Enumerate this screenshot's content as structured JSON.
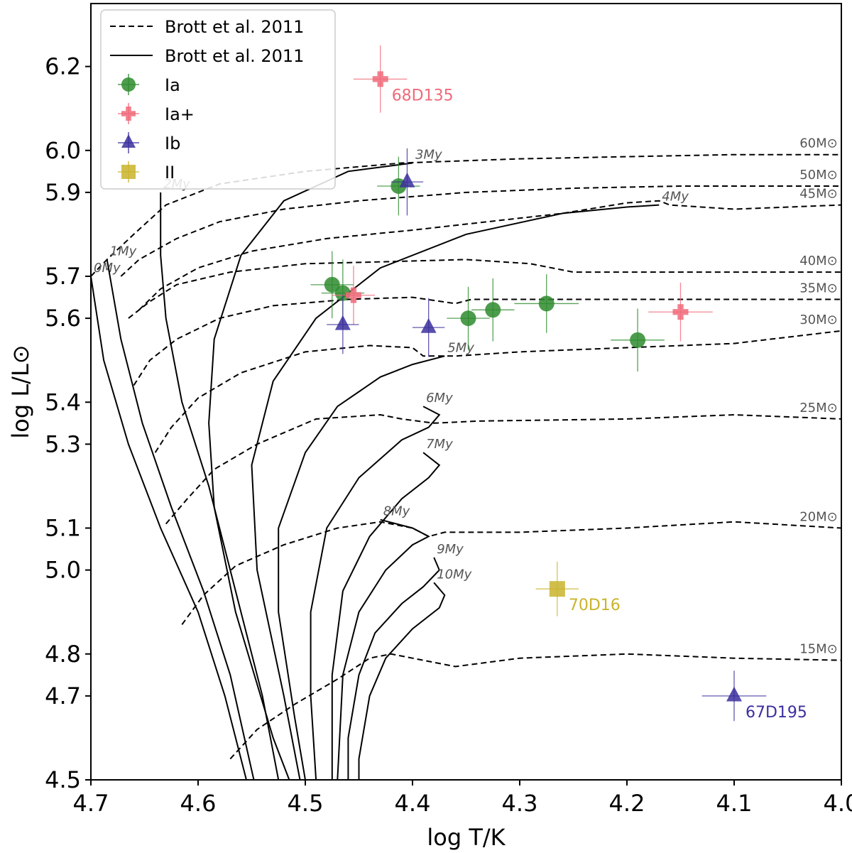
{
  "chart_data": {
    "type": "scatter",
    "title": "",
    "xlabel": "log T/K",
    "ylabel": "log L/L⊙",
    "xlim": [
      4.7,
      4.0
    ],
    "ylim": [
      4.5,
      6.35
    ],
    "x_ticks": [
      "4.7",
      "4.6",
      "4.5",
      "4.4",
      "4.3",
      "4.2",
      "4.1",
      "4.0"
    ],
    "x_tick_values": [
      4.7,
      4.6,
      4.5,
      4.4,
      4.3,
      4.2,
      4.1,
      4.0
    ],
    "y_ticks": [
      "4.5",
      "4.7",
      "4.8",
      "5.0",
      "5.1",
      "5.3",
      "5.4",
      "5.6",
      "5.7",
      "5.9",
      "6.0",
      "6.2"
    ],
    "y_tick_values": [
      4.5,
      4.7,
      4.8,
      5.0,
      5.1,
      5.3,
      5.4,
      5.6,
      5.7,
      5.9,
      6.0,
      6.2
    ],
    "legend": {
      "placement": "top-left",
      "entries": [
        {
          "label": "Brott et al. 2011",
          "style": "dashed"
        },
        {
          "label": "Brott et al. 2011",
          "style": "solid"
        },
        {
          "label": "Ia",
          "marker": "circle",
          "color": "#2e8b2e"
        },
        {
          "label": "Ia+",
          "marker": "plus",
          "color": "#f06a7a"
        },
        {
          "label": "Ib",
          "marker": "triangle",
          "color": "#3b2f9e"
        },
        {
          "label": "II",
          "marker": "square",
          "color": "#c9b42c"
        }
      ]
    },
    "tracks": [
      {
        "mass_label": "60M⊙",
        "points": [
          [
            4.7,
            5.7
          ],
          [
            4.685,
            5.74
          ],
          [
            4.66,
            5.8
          ],
          [
            4.63,
            5.87
          ],
          [
            4.58,
            5.92
          ],
          [
            4.5,
            5.95
          ],
          [
            4.41,
            5.97
          ],
          [
            4.3,
            5.98
          ],
          [
            4.2,
            5.985
          ],
          [
            4.1,
            5.99
          ],
          [
            4.0,
            5.99
          ]
        ]
      },
      {
        "mass_label": "50M⊙",
        "points": [
          [
            4.672,
            5.7
          ],
          [
            4.655,
            5.74
          ],
          [
            4.62,
            5.79
          ],
          [
            4.58,
            5.83
          ],
          [
            4.52,
            5.86
          ],
          [
            4.45,
            5.88
          ],
          [
            4.35,
            5.9
          ],
          [
            4.25,
            5.91
          ],
          [
            4.15,
            5.915
          ],
          [
            4.0,
            5.915
          ]
        ]
      },
      {
        "mass_label": "45M⊙",
        "points": [
          [
            4.655,
            5.62
          ],
          [
            4.635,
            5.67
          ],
          [
            4.6,
            5.72
          ],
          [
            4.55,
            5.76
          ],
          [
            4.48,
            5.79
          ],
          [
            4.4,
            5.81
          ],
          [
            4.33,
            5.83
          ],
          [
            4.26,
            5.85
          ],
          [
            4.2,
            5.875
          ],
          [
            4.17,
            5.88
          ],
          [
            4.16,
            5.87
          ],
          [
            4.1,
            5.86
          ],
          [
            4.0,
            5.87
          ]
        ]
      },
      {
        "mass_label": "40M⊙",
        "points": [
          [
            4.665,
            5.6
          ],
          [
            4.645,
            5.64
          ],
          [
            4.62,
            5.68
          ],
          [
            4.57,
            5.71
          ],
          [
            4.5,
            5.73
          ],
          [
            4.42,
            5.735
          ],
          [
            4.35,
            5.74
          ],
          [
            4.29,
            5.73
          ],
          [
            4.25,
            5.71
          ],
          [
            4.15,
            5.71
          ],
          [
            4.0,
            5.71
          ]
        ]
      },
      {
        "mass_label": "35M⊙",
        "points": [
          [
            4.66,
            5.44
          ],
          [
            4.645,
            5.5
          ],
          [
            4.62,
            5.55
          ],
          [
            4.58,
            5.6
          ],
          [
            4.53,
            5.63
          ],
          [
            4.46,
            5.645
          ],
          [
            4.4,
            5.65
          ],
          [
            4.36,
            5.635
          ],
          [
            4.345,
            5.645
          ],
          [
            4.3,
            5.645
          ],
          [
            4.2,
            5.645
          ],
          [
            4.1,
            5.645
          ],
          [
            4.0,
            5.645
          ]
        ]
      },
      {
        "mass_label": "30M⊙",
        "points": [
          [
            4.64,
            5.28
          ],
          [
            4.625,
            5.34
          ],
          [
            4.6,
            5.41
          ],
          [
            4.56,
            5.47
          ],
          [
            4.5,
            5.52
          ],
          [
            4.44,
            5.535
          ],
          [
            4.4,
            5.53
          ],
          [
            4.39,
            5.51
          ],
          [
            4.36,
            5.51
          ],
          [
            4.3,
            5.52
          ],
          [
            4.2,
            5.53
          ],
          [
            4.1,
            5.54
          ],
          [
            4.0,
            5.57
          ]
        ]
      },
      {
        "mass_label": "25M⊙",
        "points": [
          [
            4.63,
            5.11
          ],
          [
            4.61,
            5.17
          ],
          [
            4.585,
            5.24
          ],
          [
            4.545,
            5.3
          ],
          [
            4.49,
            5.36
          ],
          [
            4.43,
            5.37
          ],
          [
            4.41,
            5.36
          ],
          [
            4.38,
            5.35
          ],
          [
            4.34,
            5.355
          ],
          [
            4.2,
            5.36
          ],
          [
            4.1,
            5.37
          ],
          [
            4.0,
            5.36
          ]
        ]
      },
      {
        "mass_label": "20M⊙",
        "points": [
          [
            4.615,
            4.87
          ],
          [
            4.595,
            4.94
          ],
          [
            4.565,
            5.01
          ],
          [
            4.52,
            5.06
          ],
          [
            4.47,
            5.1
          ],
          [
            4.43,
            5.115
          ],
          [
            4.4,
            5.1
          ],
          [
            4.385,
            5.08
          ],
          [
            4.37,
            5.09
          ],
          [
            4.3,
            5.09
          ],
          [
            4.2,
            5.1
          ],
          [
            4.1,
            5.115
          ],
          [
            4.0,
            5.1
          ]
        ]
      },
      {
        "mass_label": "15M⊙",
        "points": [
          [
            4.57,
            4.55
          ],
          [
            4.545,
            4.62
          ],
          [
            4.51,
            4.68
          ],
          [
            4.47,
            4.74
          ],
          [
            4.44,
            4.79
          ],
          [
            4.42,
            4.8
          ],
          [
            4.4,
            4.79
          ],
          [
            4.38,
            4.78
          ],
          [
            4.36,
            4.77
          ],
          [
            4.3,
            4.79
          ],
          [
            4.2,
            4.8
          ],
          [
            4.1,
            4.79
          ],
          [
            4.0,
            4.785
          ]
        ]
      }
    ],
    "isochrones": [
      {
        "age_label": "0My",
        "points": [
          [
            4.7,
            5.7
          ],
          [
            4.688,
            5.5
          ],
          [
            4.665,
            5.3
          ],
          [
            4.635,
            5.1
          ],
          [
            4.6,
            4.9
          ],
          [
            4.575,
            4.7
          ],
          [
            4.555,
            4.5
          ]
        ]
      },
      {
        "age_label": "1My",
        "points": [
          [
            4.685,
            5.74
          ],
          [
            4.672,
            5.55
          ],
          [
            4.652,
            5.35
          ],
          [
            4.625,
            5.15
          ],
          [
            4.595,
            4.95
          ],
          [
            4.57,
            4.75
          ],
          [
            4.548,
            4.5
          ]
        ]
      },
      {
        "age_label": "2My",
        "points": [
          [
            4.635,
            5.9
          ],
          [
            4.635,
            5.75
          ],
          [
            4.63,
            5.6
          ],
          [
            4.615,
            5.4
          ],
          [
            4.59,
            5.2
          ],
          [
            4.565,
            4.95
          ],
          [
            4.54,
            4.7
          ],
          [
            4.525,
            4.5
          ]
        ]
      },
      {
        "age_label": "3My",
        "points": [
          [
            4.4,
            5.97
          ],
          [
            4.46,
            5.95
          ],
          [
            4.52,
            5.88
          ],
          [
            4.56,
            5.75
          ],
          [
            4.585,
            5.55
          ],
          [
            4.59,
            5.35
          ],
          [
            4.585,
            5.15
          ],
          [
            4.565,
            4.9
          ],
          [
            4.53,
            4.6
          ],
          [
            4.515,
            4.5
          ]
        ]
      },
      {
        "age_label": "4My",
        "points": [
          [
            4.17,
            5.87
          ],
          [
            4.2,
            5.865
          ],
          [
            4.26,
            5.85
          ],
          [
            4.35,
            5.8
          ],
          [
            4.43,
            5.72
          ],
          [
            4.49,
            5.6
          ],
          [
            4.53,
            5.45
          ],
          [
            4.55,
            5.25
          ],
          [
            4.545,
            5.0
          ],
          [
            4.52,
            4.7
          ],
          [
            4.505,
            4.5
          ]
        ]
      },
      {
        "age_label": "5My",
        "points": [
          [
            4.37,
            5.51
          ],
          [
            4.4,
            5.49
          ],
          [
            4.43,
            5.46
          ],
          [
            4.47,
            5.39
          ],
          [
            4.5,
            5.28
          ],
          [
            4.525,
            5.1
          ],
          [
            4.525,
            4.9
          ],
          [
            4.51,
            4.65
          ],
          [
            4.5,
            4.5
          ]
        ]
      },
      {
        "age_label": "6My",
        "points": [
          [
            4.39,
            5.39
          ],
          [
            4.375,
            5.37
          ],
          [
            4.385,
            5.34
          ],
          [
            4.41,
            5.31
          ],
          [
            4.45,
            5.22
          ],
          [
            4.48,
            5.1
          ],
          [
            4.495,
            4.9
          ],
          [
            4.495,
            4.7
          ],
          [
            4.49,
            4.5
          ]
        ]
      },
      {
        "age_label": "7My",
        "points": [
          [
            4.39,
            5.28
          ],
          [
            4.375,
            5.25
          ],
          [
            4.385,
            5.22
          ],
          [
            4.41,
            5.17
          ],
          [
            4.44,
            5.08
          ],
          [
            4.465,
            4.95
          ],
          [
            4.475,
            4.75
          ],
          [
            4.475,
            4.5
          ]
        ]
      },
      {
        "age_label": "8My",
        "points": [
          [
            4.43,
            5.12
          ],
          [
            4.4,
            5.1
          ],
          [
            4.385,
            5.08
          ],
          [
            4.4,
            5.06
          ],
          [
            4.425,
            5.0
          ],
          [
            4.45,
            4.9
          ],
          [
            4.465,
            4.75
          ],
          [
            4.47,
            4.5
          ]
        ]
      },
      {
        "age_label": "9My",
        "points": [
          [
            4.38,
            5.03
          ],
          [
            4.375,
            5.0
          ],
          [
            4.39,
            4.96
          ],
          [
            4.41,
            4.92
          ],
          [
            4.435,
            4.85
          ],
          [
            4.45,
            4.75
          ],
          [
            4.46,
            4.6
          ],
          [
            4.46,
            4.5
          ]
        ]
      },
      {
        "age_label": "10My",
        "points": [
          [
            4.38,
            4.97
          ],
          [
            4.37,
            4.94
          ],
          [
            4.375,
            4.91
          ],
          [
            4.4,
            4.86
          ],
          [
            4.425,
            4.79
          ],
          [
            4.44,
            4.7
          ],
          [
            4.45,
            4.55
          ],
          [
            4.45,
            4.5
          ]
        ]
      }
    ],
    "stars": [
      {
        "cls": "Ia",
        "x": 4.413,
        "y": 5.915,
        "xerr": 0.02,
        "yerr": 0.07
      },
      {
        "cls": "Ia",
        "x": 4.475,
        "y": 5.68,
        "xerr": 0.02,
        "yerr": 0.08
      },
      {
        "cls": "Ia",
        "x": 4.465,
        "y": 5.66,
        "xerr": 0.02,
        "yerr": 0.08
      },
      {
        "cls": "Ia",
        "x": 4.348,
        "y": 5.6,
        "xerr": 0.02,
        "yerr": 0.075
      },
      {
        "cls": "Ia",
        "x": 4.325,
        "y": 5.62,
        "xerr": 0.02,
        "yerr": 0.075
      },
      {
        "cls": "Ia",
        "x": 4.275,
        "y": 5.635,
        "xerr": 0.03,
        "yerr": 0.07
      },
      {
        "cls": "Ia",
        "x": 4.19,
        "y": 5.548,
        "xerr": 0.025,
        "yerr": 0.075
      },
      {
        "cls": "Ia+",
        "x": 4.43,
        "y": 6.17,
        "xerr": 0.025,
        "yerr": 0.08,
        "label": "68D135"
      },
      {
        "cls": "Ia+",
        "x": 4.455,
        "y": 5.655,
        "xerr": 0.02,
        "yerr": 0.07
      },
      {
        "cls": "Ia+",
        "x": 4.15,
        "y": 5.615,
        "xerr": 0.03,
        "yerr": 0.07
      },
      {
        "cls": "Ib",
        "x": 4.405,
        "y": 5.925,
        "xerr": 0.015,
        "yerr": 0.08
      },
      {
        "cls": "Ib",
        "x": 4.465,
        "y": 5.585,
        "xerr": 0.015,
        "yerr": 0.07
      },
      {
        "cls": "Ib",
        "x": 4.385,
        "y": 5.578,
        "xerr": 0.015,
        "yerr": 0.07
      },
      {
        "cls": "Ib",
        "x": 4.1,
        "y": 4.7,
        "xerr": 0.03,
        "yerr": 0.06,
        "label": "67D195"
      },
      {
        "cls": "II",
        "x": 4.265,
        "y": 4.955,
        "xerr": 0.02,
        "yerr": 0.065,
        "label": "70D16"
      }
    ]
  }
}
